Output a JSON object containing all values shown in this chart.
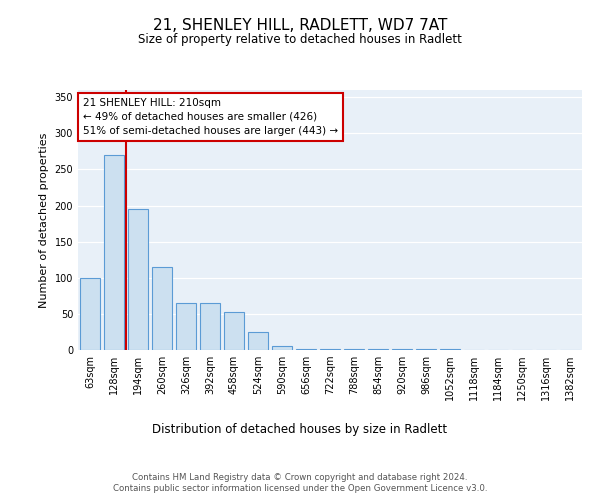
{
  "title_line1": "21, SHENLEY HILL, RADLETT, WD7 7AT",
  "title_line2": "Size of property relative to detached houses in Radlett",
  "xlabel": "Distribution of detached houses by size in Radlett",
  "ylabel": "Number of detached properties",
  "categories": [
    "63sqm",
    "128sqm",
    "194sqm",
    "260sqm",
    "326sqm",
    "392sqm",
    "458sqm",
    "524sqm",
    "590sqm",
    "656sqm",
    "722sqm",
    "788sqm",
    "854sqm",
    "920sqm",
    "986sqm",
    "1052sqm",
    "1118sqm",
    "1184sqm",
    "1250sqm",
    "1316sqm",
    "1382sqm"
  ],
  "values": [
    100,
    270,
    195,
    115,
    65,
    65,
    52,
    25,
    5,
    2,
    2,
    1,
    1,
    1,
    1,
    1,
    0,
    0,
    0,
    0,
    0
  ],
  "bar_color": "#cce0f0",
  "bar_edge_color": "#5b9bd5",
  "annotation_text": "21 SHENLEY HILL: 210sqm\n← 49% of detached houses are smaller (426)\n51% of semi-detached houses are larger (443) →",
  "annotation_box_color": "#ffffff",
  "annotation_border_color": "#cc0000",
  "ylim": [
    0,
    360
  ],
  "yticks": [
    0,
    50,
    100,
    150,
    200,
    250,
    300,
    350
  ],
  "bg_color": "#e8f0f8",
  "footer_line1": "Contains HM Land Registry data © Crown copyright and database right 2024.",
  "footer_line2": "Contains public sector information licensed under the Open Government Licence v3.0."
}
